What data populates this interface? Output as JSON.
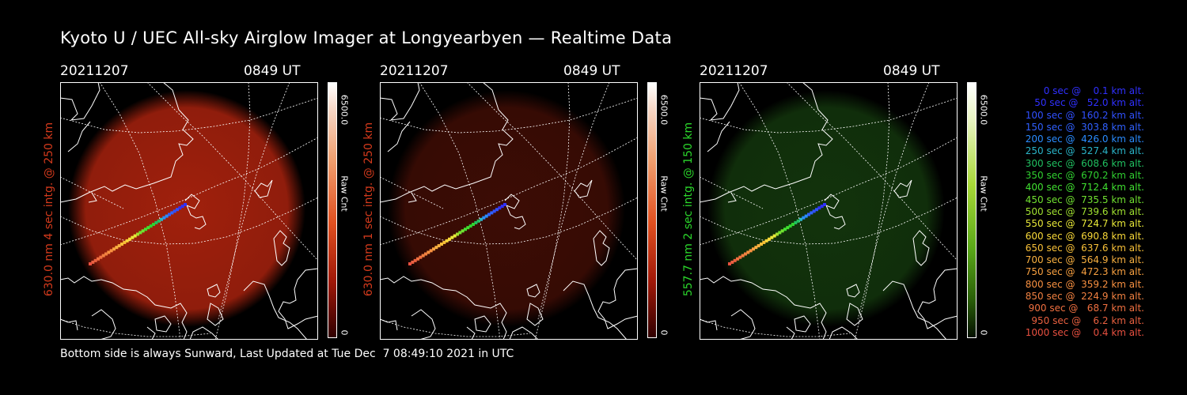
{
  "title": "Kyoto U / UEC All-sky Airglow Imager at Longyearbyen — Realtime Data",
  "footer": "Bottom side is always Sunward, Last Updated at Tue Dec  7 08:49:10 2021 in UTC",
  "colors": {
    "red": "#d33a1c",
    "green": "#2bd62b",
    "background": "#000000"
  },
  "panels": [
    {
      "date": "20211207",
      "time": "0849 UT",
      "side_label": "630.0 nm 4 sec intg. @ 250 km",
      "label_color": "#d33a1c",
      "cbar_max": "6500.0",
      "cbar_unit": "Raw Cnt",
      "cbar_min": "0",
      "image_channel": "red",
      "image_intensity": 0.8
    },
    {
      "date": "20211207",
      "time": "0849 UT",
      "side_label": "630.0 nm 1 sec intg. @ 250 km",
      "label_color": "#d33a1c",
      "cbar_max": "6500.0",
      "cbar_unit": "Raw Cnt",
      "cbar_min": "0",
      "image_channel": "red",
      "image_intensity": 0.3
    },
    {
      "date": "20211207",
      "time": "0849 UT",
      "side_label": "557.7 nm 2 sec intg. @ 150 km",
      "label_color": "#2bd62b",
      "cbar_max": "6500.0",
      "cbar_unit": "Raw Cnt",
      "cbar_min": "0",
      "image_channel": "green",
      "image_intensity": 0.3
    }
  ],
  "legend": [
    {
      "text": "0 sec @    0.1 km alt.",
      "color": "#3030ff"
    },
    {
      "text": "50 sec @   52.0 km alt.",
      "color": "#3030ff"
    },
    {
      "text": "100 sec @  160.2 km alt.",
      "color": "#3050ff"
    },
    {
      "text": "150 sec @  303.8 km alt.",
      "color": "#3060ff"
    },
    {
      "text": "200 sec @  426.0 km alt.",
      "color": "#2a8cff"
    },
    {
      "text": "250 sec @  527.4 km alt.",
      "color": "#2ab4c8"
    },
    {
      "text": "300 sec @  608.6 km alt.",
      "color": "#20c060"
    },
    {
      "text": "350 sec @  670.2 km alt.",
      "color": "#30d030"
    },
    {
      "text": "400 sec @  712.4 km alt.",
      "color": "#40e030"
    },
    {
      "text": "450 sec @  735.5 km alt.",
      "color": "#70e030"
    },
    {
      "text": "500 sec @  739.6 km alt.",
      "color": "#a0e030"
    },
    {
      "text": "550 sec @  724.7 km alt.",
      "color": "#e8e838"
    },
    {
      "text": "600 sec @  690.8 km alt.",
      "color": "#f8d838"
    },
    {
      "text": "650 sec @  637.6 km alt.",
      "color": "#f8c038"
    },
    {
      "text": "700 sec @  564.9 km alt.",
      "color": "#f8b040"
    },
    {
      "text": "750 sec @  472.3 km alt.",
      "color": "#f8a040"
    },
    {
      "text": "800 sec @  359.2 km alt.",
      "color": "#f89040"
    },
    {
      "text": "850 sec @  224.9 km alt.",
      "color": "#f08040"
    },
    {
      "text": "900 sec @   68.7 km alt.",
      "color": "#f07040"
    },
    {
      "text": "950 sec @    6.2 km alt.",
      "color": "#e86040"
    },
    {
      "text": "1000 sec @    0.4 km alt.",
      "color": "#e85040"
    }
  ]
}
